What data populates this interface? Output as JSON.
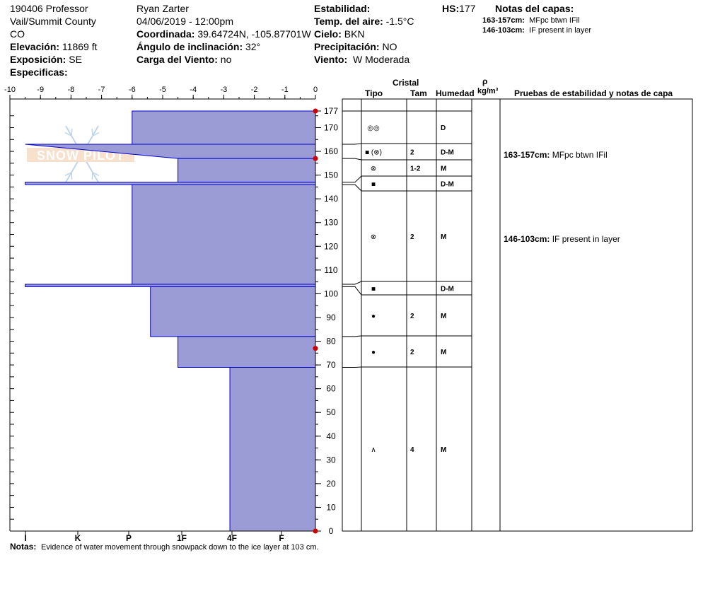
{
  "header": {
    "col1": [
      "190406 Professor",
      "Vail/Summit County",
      "CO"
    ],
    "elevation_label": "Elevación:",
    "elevation_value": "11869 ft",
    "aspect_label": "Exposición:",
    "aspect_value": "SE",
    "specifics_label": "Especificas:",
    "observer": "Ryan Zarter",
    "datetime": "04/06/2019 - 12:00pm",
    "coord_label": "Coordinada:",
    "coord_value": "39.64724N, -105.87701W",
    "slope_label": "Ángulo de inclinación:",
    "slope_value": "32°",
    "wind_load_label": "Carga del Viento:",
    "wind_load_value": "no",
    "stability_label": "Estabilidad:",
    "air_temp_label": "Temp. del aire:",
    "air_temp_value": "-1.5°C",
    "sky_label": "Cielo:",
    "sky_value": "BKN",
    "precip_label": "Precipitación:",
    "precip_value": "NO",
    "wind_label": "Viento:",
    "wind_value": "W Moderada",
    "hs_label": "HS:",
    "hs_value": "177",
    "layer_notes_title": "Notas del capas:",
    "layer_notes": [
      {
        "range": "163-157cm:",
        "text": "MFpc btwn IFil"
      },
      {
        "range": "146-103cm:",
        "text": "IF present in layer"
      }
    ]
  },
  "watermark": "SNOW PILOT",
  "table_headers": {
    "cristal": "Cristal",
    "tipo": "Tipo",
    "tam": "Tam",
    "humedad": "Humedad",
    "rho": "ρ",
    "density_unit": "kg/m³",
    "tests": "Pruebas de estabilidad y notas de capa"
  },
  "notes_label": "Notas:",
  "notes_text": "Evidence of water movement through snowpack down to the ice layer at 103 cm.",
  "chart_data": {
    "type": "snow-profile",
    "hs": 177,
    "temp_axis": {
      "ticks": [
        "-10",
        "-9",
        "-8",
        "-7",
        "-6",
        "-5",
        "-4",
        "-3",
        "-2",
        "-1",
        "0"
      ]
    },
    "height_axis": {
      "min": 0,
      "max": 177,
      "ticks": [
        "0",
        "10",
        "20",
        "30",
        "40",
        "50",
        "60",
        "70",
        "80",
        "90",
        "100",
        "110",
        "120",
        "130",
        "140",
        "150",
        "160",
        "170",
        "177"
      ]
    },
    "hardness_axis": {
      "ticks": [
        "I",
        "K",
        "P",
        "1F",
        "4F",
        "F"
      ]
    },
    "hardness_profile": [
      {
        "top": 177,
        "bottom": 163,
        "hardness": -6
      },
      {
        "top": 163,
        "bottom": 157,
        "hardness": -9.5,
        "hardness_bottom": -4.5
      },
      {
        "top": 157,
        "bottom": 147,
        "hardness": -4.5
      },
      {
        "top": 147,
        "bottom": 146,
        "hardness": -9.5
      },
      {
        "top": 146,
        "bottom": 104,
        "hardness": -6
      },
      {
        "top": 104,
        "bottom": 103,
        "hardness": -9.5
      },
      {
        "top": 103,
        "bottom": 82,
        "hardness": -5.4
      },
      {
        "top": 82,
        "bottom": 69,
        "hardness": -4.5
      },
      {
        "top": 69,
        "bottom": 0,
        "hardness": -2.8
      }
    ],
    "temperature_points": [
      {
        "height": 177,
        "temp": 0
      },
      {
        "height": 157,
        "temp": 0
      },
      {
        "height": 77,
        "temp": 0
      },
      {
        "height": 0,
        "temp": 0
      }
    ],
    "layers": [
      {
        "top": 177,
        "bottom": 163,
        "tipo": "◎◎",
        "tam": "",
        "humedad": "D"
      },
      {
        "top": 163,
        "bottom": 157,
        "tipo": "■ (⊗)",
        "tam": "2",
        "humedad": "D-M"
      },
      {
        "top": 157,
        "bottom": 147,
        "tipo": "⊗",
        "tam": "1-2",
        "humedad": "M"
      },
      {
        "top": 147,
        "bottom": 146,
        "tipo": "■",
        "tam": "",
        "humedad": "D-M"
      },
      {
        "top": 146,
        "bottom": 104,
        "tipo": "⊗",
        "tam": "2",
        "humedad": "M"
      },
      {
        "top": 104,
        "bottom": 103,
        "tipo": "■",
        "tam": "",
        "humedad": "D-M"
      },
      {
        "top": 103,
        "bottom": 82,
        "tipo": "●",
        "tam": "2",
        "humedad": "M"
      },
      {
        "top": 82,
        "bottom": 69,
        "tipo": "●",
        "tam": "2",
        "humedad": "M"
      },
      {
        "top": 69,
        "bottom": 0,
        "tipo": "∧",
        "tam": "4",
        "humedad": "M"
      }
    ],
    "test_notes": [
      {
        "height": 160,
        "range": "163-157cm:",
        "text": "MFpc btwn IFil"
      },
      {
        "height": 124.5,
        "range": "146-103cm:",
        "text": "IF present in layer"
      }
    ],
    "colors": {
      "fill": "#9b9bd6",
      "stroke": "#0000cc",
      "temp_point": "#cc0000"
    }
  }
}
